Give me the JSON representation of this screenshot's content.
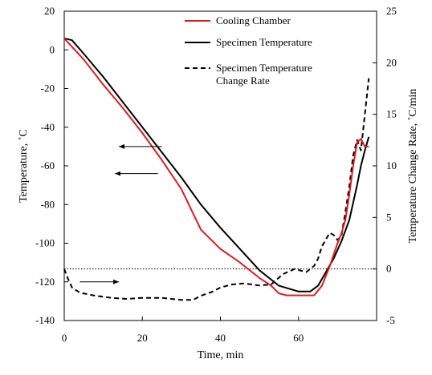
{
  "chart_data": {
    "type": "line",
    "xlabel": "Time, min",
    "ylabel": "Temperature, ˚C",
    "y2label": "Temperature Change Rate, ˚C/min",
    "xlim": [
      0,
      80
    ],
    "ylim": [
      -140,
      20
    ],
    "y2lim": [
      -5,
      25
    ],
    "xticks": [
      0,
      20,
      40,
      60
    ],
    "yticks": [
      20,
      0,
      -20,
      -40,
      -60,
      -80,
      -100,
      -120,
      -140
    ],
    "y2ticks": [
      25,
      20,
      15,
      10,
      5,
      0,
      -5
    ],
    "grid": false,
    "legend_position": "top-right",
    "reference_line_y2": 0,
    "series": [
      {
        "name": "Cooling Chamber",
        "axis": "left",
        "color": "#e0191e",
        "style": "solid",
        "x": [
          0,
          5,
          10,
          15,
          20,
          25,
          30,
          35,
          40,
          45,
          50,
          53,
          55,
          57,
          60,
          62,
          64,
          66,
          68,
          70,
          71,
          72,
          73,
          74,
          75,
          76,
          77,
          78
        ],
        "y": [
          6,
          -5,
          -18,
          -30,
          -43,
          -57,
          -72,
          -93,
          -103,
          -110,
          -118,
          -122,
          -126,
          -127,
          -127,
          -127,
          -127,
          -122,
          -112,
          -100,
          -95,
          -88,
          -75,
          -60,
          -48,
          -46,
          -50,
          -50
        ]
      },
      {
        "name": "Specimen Temperature",
        "axis": "left",
        "color": "#000000",
        "style": "solid",
        "x": [
          0,
          2,
          5,
          10,
          15,
          20,
          25,
          30,
          35,
          40,
          45,
          50,
          55,
          60,
          63,
          65,
          67,
          69,
          71,
          73,
          75,
          76,
          77,
          78
        ],
        "y": [
          6,
          5,
          -2,
          -14,
          -27,
          -40,
          -53,
          -66,
          -80,
          -92,
          -103,
          -114,
          -122,
          -125,
          -125,
          -122,
          -115,
          -108,
          -99,
          -88,
          -70,
          -60,
          -52,
          -45
        ]
      },
      {
        "name": "Specimen Temperature Change Rate",
        "axis": "right",
        "color": "#000000",
        "style": "dashed",
        "x": [
          0,
          1,
          2,
          4,
          8,
          12,
          16,
          20,
          25,
          30,
          33,
          35,
          38,
          40,
          43,
          46,
          50,
          53,
          56,
          59,
          62,
          64,
          65,
          66,
          68,
          69,
          70,
          71,
          72,
          73,
          74,
          75,
          76,
          77,
          78
        ],
        "y": [
          0,
          -1,
          -1.8,
          -2.3,
          -2.6,
          -2.8,
          -2.9,
          -2.8,
          -2.8,
          -3.0,
          -3.0,
          -2.6,
          -2.2,
          -1.8,
          -1.5,
          -1.4,
          -1.6,
          -1.5,
          -0.5,
          0,
          -0.3,
          0.3,
          1.0,
          2.2,
          3.5,
          3.3,
          2.8,
          3.2,
          5.5,
          8.0,
          11.0,
          12.5,
          11.5,
          15.0,
          18.5
        ]
      }
    ],
    "annotation_arrows": [
      {
        "x_from": 25,
        "x_to": 14,
        "y": -50,
        "axis": "left",
        "points": "left"
      },
      {
        "x_from": 24,
        "x_to": 13,
        "y": -64,
        "axis": "left",
        "points": "left"
      },
      {
        "x_from": 4,
        "x_to": 14,
        "y": -120,
        "axis": "left",
        "points": "right"
      }
    ]
  }
}
